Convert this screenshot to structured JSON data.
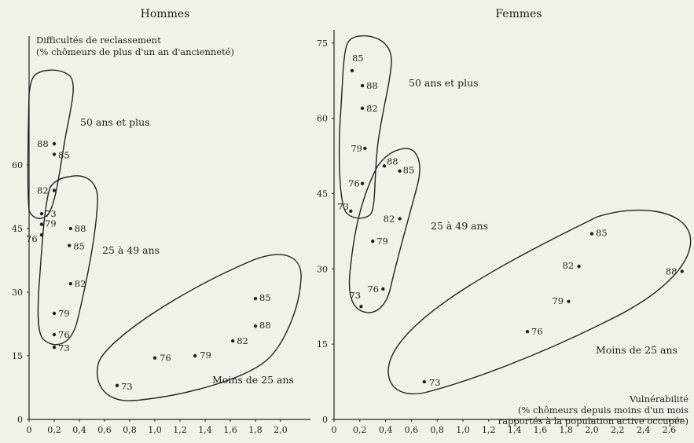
{
  "chart_data": [
    {
      "type": "scatter",
      "title": "Hommes",
      "ylabel": "Difficultés de reclassement",
      "ylabel_sub": "(% chômeurs de plus d'un an d'ancienneté)",
      "xlim": [
        0,
        2.2
      ],
      "ylim": [
        0,
        70
      ],
      "x_ticks": [
        "0",
        "0,2",
        "0,4",
        "0,6",
        "0,8",
        "1,0",
        "1,2",
        "1,4",
        "1,6",
        "1,8",
        "2,0"
      ],
      "y_ticks": [
        "0",
        "15",
        "30",
        "45",
        "60"
      ],
      "groups": [
        {
          "name": "50 ans et plus",
          "points": [
            {
              "label": "88",
              "x": 0.2,
              "y": 65
            },
            {
              "label": "85",
              "x": 0.2,
              "y": 62.5
            },
            {
              "label": "82",
              "x": 0.2,
              "y": 54
            },
            {
              "label": "73",
              "x": 0.1,
              "y": 48.5
            },
            {
              "label": "79",
              "x": 0.1,
              "y": 46
            },
            {
              "label": "76",
              "x": 0.1,
              "y": 43.5
            }
          ]
        },
        {
          "name": "25 à 49 ans",
          "points": [
            {
              "label": "88",
              "x": 0.33,
              "y": 45
            },
            {
              "label": "85",
              "x": 0.32,
              "y": 41
            },
            {
              "label": "82",
              "x": 0.33,
              "y": 32
            },
            {
              "label": "79",
              "x": 0.2,
              "y": 25
            },
            {
              "label": "76",
              "x": 0.2,
              "y": 20
            },
            {
              "label": "73",
              "x": 0.2,
              "y": 17
            }
          ]
        },
        {
          "name": "Moins de 25 ans",
          "points": [
            {
              "label": "85",
              "x": 1.8,
              "y": 28.5
            },
            {
              "label": "88",
              "x": 1.8,
              "y": 22
            },
            {
              "label": "82",
              "x": 1.62,
              "y": 18.5
            },
            {
              "label": "79",
              "x": 1.32,
              "y": 15
            },
            {
              "label": "76",
              "x": 1.0,
              "y": 14.5
            },
            {
              "label": "73",
              "x": 0.7,
              "y": 8
            }
          ]
        }
      ]
    },
    {
      "type": "scatter",
      "title": "Femmes",
      "xlabel": "Vulnérabilité",
      "xlabel_sub": "(% chômeurs depuis moins d'un mois rapportés à la population active occupée)",
      "xlim": [
        0,
        2.8
      ],
      "ylim": [
        0,
        75
      ],
      "x_ticks": [
        "0",
        "0,2",
        "0,4",
        "0,6",
        "0,8",
        "1,0",
        "1,2",
        "1,4",
        "1,6",
        "1,8",
        "2,0",
        "2,2",
        "2,4",
        "2,6"
      ],
      "y_ticks": [
        "0",
        "15",
        "30",
        "45",
        "60",
        "75"
      ],
      "groups": [
        {
          "name": "50 ans et plus",
          "points": [
            {
              "label": "85",
              "x": 0.14,
              "y": 69.5
            },
            {
              "label": "88",
              "x": 0.22,
              "y": 66.5
            },
            {
              "label": "82",
              "x": 0.22,
              "y": 62
            },
            {
              "label": "79",
              "x": 0.24,
              "y": 54
            },
            {
              "label": "76",
              "x": 0.22,
              "y": 47
            },
            {
              "label": "73",
              "x": 0.13,
              "y": 41.5
            }
          ]
        },
        {
          "name": "25 à 49 ans",
          "points": [
            {
              "label": "88",
              "x": 0.39,
              "y": 50.5
            },
            {
              "label": "85",
              "x": 0.51,
              "y": 49.5
            },
            {
              "label": "82",
              "x": 0.51,
              "y": 40
            },
            {
              "label": "79",
              "x": 0.3,
              "y": 35.5
            },
            {
              "label": "76",
              "x": 0.38,
              "y": 26
            },
            {
              "label": "73",
              "x": 0.21,
              "y": 22.5
            }
          ]
        },
        {
          "name": "Moins de 25 ans",
          "points": [
            {
              "label": "85",
              "x": 2.0,
              "y": 37
            },
            {
              "label": "88",
              "x": 2.7,
              "y": 29.5
            },
            {
              "label": "82",
              "x": 1.9,
              "y": 30.5
            },
            {
              "label": "79",
              "x": 1.82,
              "y": 23.5
            },
            {
              "label": "76",
              "x": 1.5,
              "y": 17.5
            },
            {
              "label": "73",
              "x": 0.7,
              "y": 7.5
            }
          ]
        }
      ]
    }
  ]
}
